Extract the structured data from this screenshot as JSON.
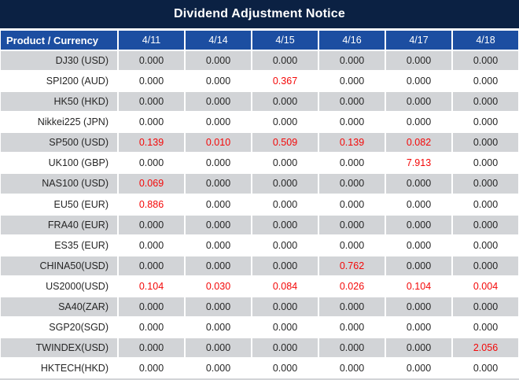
{
  "title": "Dividend Adjustment Notice",
  "colors": {
    "title_bg": "#0B2143",
    "header_bg": "#1C4EA1",
    "stripe_bg": "#D2D4D7",
    "negative_red": "#F40808",
    "text_dark": "#262626"
  },
  "table": {
    "columns": [
      "Product / Currency",
      "4/11",
      "4/14",
      "4/15",
      "4/16",
      "4/17",
      "4/18"
    ],
    "rows": [
      {
        "product": "DJ30 (USD)",
        "values": [
          "0.000",
          "0.000",
          "0.000",
          "0.000",
          "0.000",
          "0.000"
        ],
        "red": [
          false,
          false,
          false,
          false,
          false,
          false
        ]
      },
      {
        "product": "SPI200 (AUD)",
        "values": [
          "0.000",
          "0.000",
          "0.367",
          "0.000",
          "0.000",
          "0.000"
        ],
        "red": [
          false,
          false,
          true,
          false,
          false,
          false
        ]
      },
      {
        "product": "HK50 (HKD)",
        "values": [
          "0.000",
          "0.000",
          "0.000",
          "0.000",
          "0.000",
          "0.000"
        ],
        "red": [
          false,
          false,
          false,
          false,
          false,
          false
        ]
      },
      {
        "product": "Nikkei225 (JPN)",
        "values": [
          "0.000",
          "0.000",
          "0.000",
          "0.000",
          "0.000",
          "0.000"
        ],
        "red": [
          false,
          false,
          false,
          false,
          false,
          false
        ]
      },
      {
        "product": "SP500 (USD)",
        "values": [
          "0.139",
          "0.010",
          "0.509",
          "0.139",
          "0.082",
          "0.000"
        ],
        "red": [
          true,
          true,
          true,
          true,
          true,
          false
        ]
      },
      {
        "product": "UK100 (GBP)",
        "values": [
          "0.000",
          "0.000",
          "0.000",
          "0.000",
          "7.913",
          "0.000"
        ],
        "red": [
          false,
          false,
          false,
          false,
          true,
          false
        ]
      },
      {
        "product": "NAS100 (USD)",
        "values": [
          "0.069",
          "0.000",
          "0.000",
          "0.000",
          "0.000",
          "0.000"
        ],
        "red": [
          true,
          false,
          false,
          false,
          false,
          false
        ]
      },
      {
        "product": "EU50 (EUR)",
        "values": [
          "0.886",
          "0.000",
          "0.000",
          "0.000",
          "0.000",
          "0.000"
        ],
        "red": [
          true,
          false,
          false,
          false,
          false,
          false
        ]
      },
      {
        "product": "FRA40 (EUR)",
        "values": [
          "0.000",
          "0.000",
          "0.000",
          "0.000",
          "0.000",
          "0.000"
        ],
        "red": [
          false,
          false,
          false,
          false,
          false,
          false
        ]
      },
      {
        "product": "ES35 (EUR)",
        "values": [
          "0.000",
          "0.000",
          "0.000",
          "0.000",
          "0.000",
          "0.000"
        ],
        "red": [
          false,
          false,
          false,
          false,
          false,
          false
        ]
      },
      {
        "product": "CHINA50(USD)",
        "values": [
          "0.000",
          "0.000",
          "0.000",
          "0.762",
          "0.000",
          "0.000"
        ],
        "red": [
          false,
          false,
          false,
          true,
          false,
          false
        ]
      },
      {
        "product": "US2000(USD)",
        "values": [
          "0.104",
          "0.030",
          "0.084",
          "0.026",
          "0.104",
          "0.004"
        ],
        "red": [
          true,
          true,
          true,
          true,
          true,
          true
        ]
      },
      {
        "product": "SA40(ZAR)",
        "values": [
          "0.000",
          "0.000",
          "0.000",
          "0.000",
          "0.000",
          "0.000"
        ],
        "red": [
          false,
          false,
          false,
          false,
          false,
          false
        ]
      },
      {
        "product": "SGP20(SGD)",
        "values": [
          "0.000",
          "0.000",
          "0.000",
          "0.000",
          "0.000",
          "0.000"
        ],
        "red": [
          false,
          false,
          false,
          false,
          false,
          false
        ]
      },
      {
        "product": "TWINDEX(USD)",
        "values": [
          "0.000",
          "0.000",
          "0.000",
          "0.000",
          "0.000",
          "2.056"
        ],
        "red": [
          false,
          false,
          false,
          false,
          false,
          true
        ]
      },
      {
        "product": "HKTECH(HKD)",
        "values": [
          "0.000",
          "0.000",
          "0.000",
          "0.000",
          "0.000",
          "0.000"
        ],
        "red": [
          false,
          false,
          false,
          false,
          false,
          false
        ]
      }
    ]
  }
}
